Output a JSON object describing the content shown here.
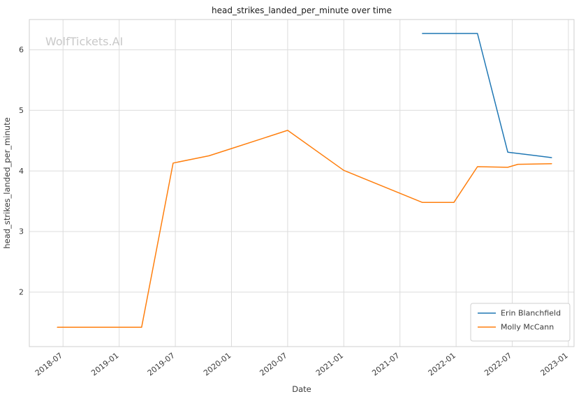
{
  "watermark": "WolfTickets.AI",
  "chart_data": {
    "type": "line",
    "title": "head_strikes_landed_per_minute over time",
    "xlabel": "Date",
    "ylabel": "head_strikes_landed_per_minute",
    "xlim": [
      2018.2,
      2023.05
    ],
    "ylim": [
      1.1,
      6.5
    ],
    "grid": true,
    "legend_position": "lower right",
    "x_ticks": [
      {
        "value": 2018.5,
        "label": "2018-07"
      },
      {
        "value": 2019.0,
        "label": "2019-01"
      },
      {
        "value": 2019.5,
        "label": "2019-07"
      },
      {
        "value": 2020.0,
        "label": "2020-01"
      },
      {
        "value": 2020.5,
        "label": "2020-07"
      },
      {
        "value": 2021.0,
        "label": "2021-01"
      },
      {
        "value": 2021.5,
        "label": "2021-07"
      },
      {
        "value": 2022.0,
        "label": "2022-01"
      },
      {
        "value": 2022.5,
        "label": "2022-07"
      },
      {
        "value": 2023.0,
        "label": "2023-01"
      }
    ],
    "y_ticks": [
      2,
      3,
      4,
      5,
      6
    ],
    "series": [
      {
        "name": "Erin Blanchfield",
        "color": "#1f77b4",
        "points": [
          [
            2021.7,
            6.27
          ],
          [
            2022.19,
            6.27
          ],
          [
            2022.46,
            4.31
          ],
          [
            2022.85,
            4.22
          ]
        ]
      },
      {
        "name": "Molly McCann",
        "color": "#ff7f0e",
        "points": [
          [
            2018.45,
            1.42
          ],
          [
            2019.2,
            1.42
          ],
          [
            2019.48,
            4.13
          ],
          [
            2019.8,
            4.25
          ],
          [
            2020.0,
            4.37
          ],
          [
            2020.5,
            4.67
          ],
          [
            2021.0,
            4.01
          ],
          [
            2021.7,
            3.48
          ],
          [
            2021.98,
            3.48
          ],
          [
            2022.19,
            4.07
          ],
          [
            2022.46,
            4.06
          ],
          [
            2022.55,
            4.11
          ],
          [
            2022.85,
            4.12
          ]
        ]
      }
    ],
    "style": {
      "grid_color": "#dcdcdc",
      "spine_color": "#cfcfcf",
      "tick_label_color": "#3a3a3a",
      "title_color": "#1a1a1a",
      "watermark_color": "#c9c9c9",
      "background": "#ffffff"
    }
  }
}
